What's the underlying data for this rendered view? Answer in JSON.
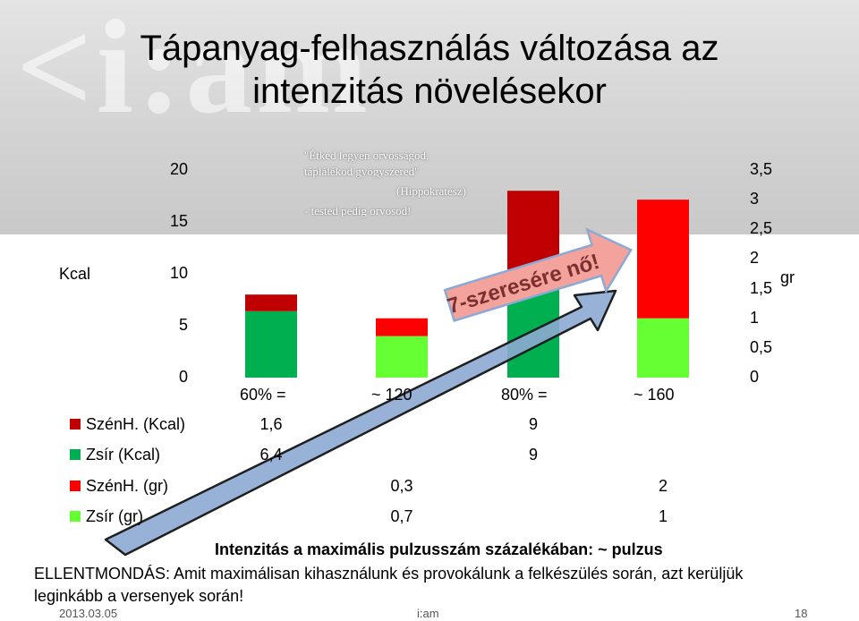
{
  "slide": {
    "logo_text": "i:am",
    "title_line1": "Tápanyag-felhasználás változása az",
    "title_line2": "intenzitás növelésekor",
    "quote": {
      "line1": "\"Étked legyen orvosságod,",
      "line2": "táplálékod gyógyszered\"",
      "line3": "(Hippokratész)",
      "line4": "- tested pedig orvosod!"
    },
    "annotation": "7-szeresére nő!",
    "xlabel": "Intenzitás a maximális pulzusszám százalékában: ~ pulzus",
    "note_line1": "ELLENTMONDÁS: Amit maximálisan kihasználunk és provokálunk a felkészülés során, azt kerüljük",
    "note_line2": "leginkább a versenyek során!",
    "footer_date": "2013.03.05",
    "footer_center": "i:am",
    "footer_page": "18"
  },
  "chart_data": {
    "type": "bar",
    "stacked": true,
    "left_axis_label": "Kcal",
    "right_axis_label": "gr",
    "left_ylim": [
      0,
      20
    ],
    "left_ticks": [
      "0",
      "5",
      "10",
      "15",
      "20"
    ],
    "right_ylim": [
      0,
      3.5
    ],
    "right_ticks": [
      "0",
      "0,5",
      "1",
      "1,5",
      "2",
      "2,5",
      "3",
      "3,5"
    ],
    "group_labels": [
      "60% =",
      "~ 120",
      "80% =",
      "~ 160"
    ],
    "series": [
      {
        "name": "SzénH. (Kcal)",
        "axis": "left",
        "color": "#c00000",
        "values": [
          1.6,
          null,
          9,
          null
        ],
        "labels": [
          "1,6",
          "",
          "9",
          ""
        ]
      },
      {
        "name": "Zsír (Kcal)",
        "axis": "left",
        "color": "#00b050",
        "values": [
          6.4,
          null,
          9,
          null
        ],
        "labels": [
          "6,4",
          "",
          "9",
          ""
        ]
      },
      {
        "name": "SzénH. (gr)",
        "axis": "right",
        "color": "#ff0000",
        "values": [
          null,
          0.3,
          null,
          2
        ],
        "labels": [
          "",
          "0,3",
          "",
          "2"
        ]
      },
      {
        "name": "Zsír (gr)",
        "axis": "right",
        "color": "#66ff33",
        "values": [
          null,
          0.7,
          null,
          1
        ],
        "labels": [
          "",
          "0,7",
          "",
          "1"
        ]
      }
    ]
  }
}
